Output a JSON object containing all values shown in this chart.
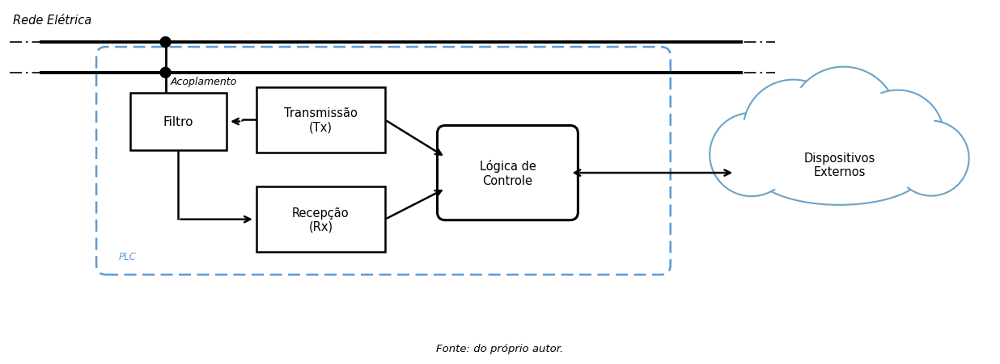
{
  "rede_label": "Rede Elétrica",
  "acoplamento_label": "Acoplamento",
  "plc_label": "PLC",
  "filtro_label": "Filtro",
  "tx_label": "Transmissão\n(Tx)",
  "rx_label": "Recepção\n(Rx)",
  "logica_label": "Lógica de\nControle",
  "disp_label": "Dispositivos\nExternos",
  "bg_color": "#ffffff",
  "dashed_box_color": "#5b9bd5",
  "cloud_color": "#6aa3c8",
  "fonte_label": "Fonte: do próprio autor."
}
